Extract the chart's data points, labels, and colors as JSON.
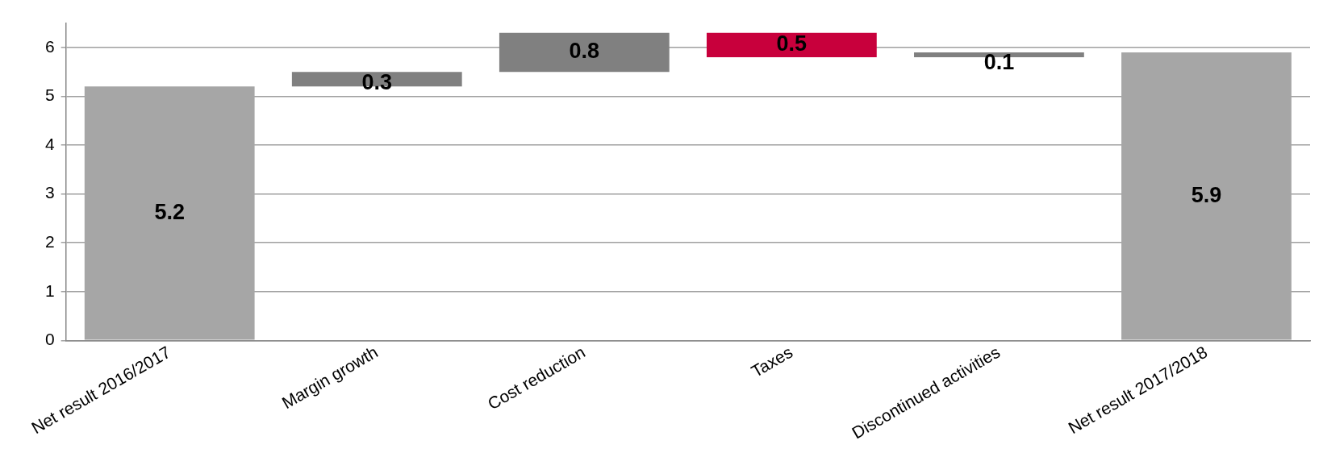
{
  "chart_data": {
    "type": "bar",
    "categories": [
      "Net result 2016/2017",
      "Margin growth",
      "Cost reduction",
      "Taxes",
      "Discontinued activities",
      "Net result 2017/2018"
    ],
    "values": [
      5.2,
      0.3,
      0.8,
      0.5,
      0.1,
      5.9
    ],
    "base": [
      0,
      5.2,
      5.5,
      5.8,
      5.8,
      0
    ],
    "colors": [
      "#a6a6a6",
      "#808080",
      "#808080",
      "#c8003c",
      "#808080",
      "#a6a6a6"
    ],
    "ylim": [
      0,
      6.5
    ],
    "yticks": [
      0,
      1,
      2,
      3,
      4,
      5,
      6
    ],
    "grid": "y",
    "data_labels": true
  }
}
